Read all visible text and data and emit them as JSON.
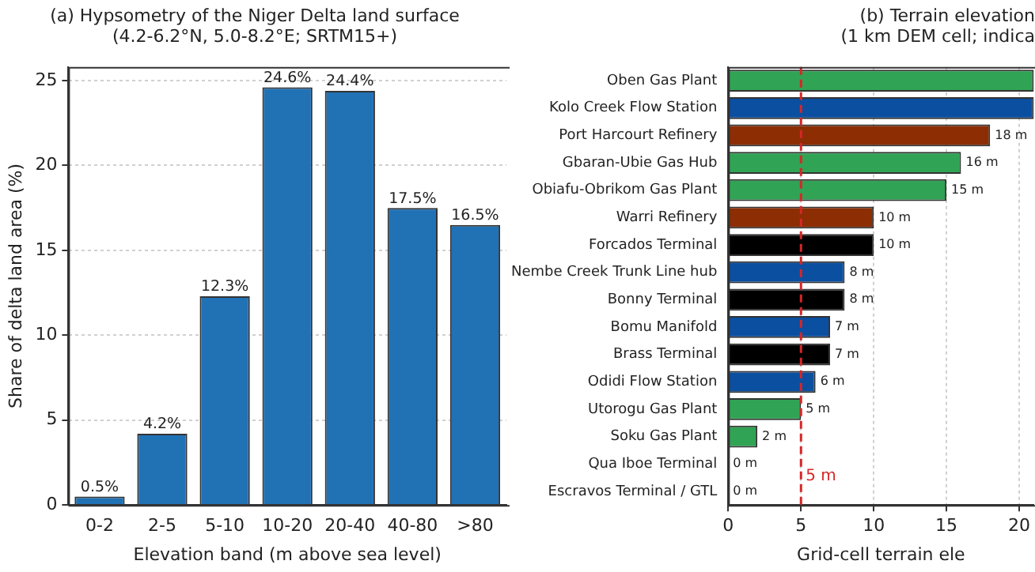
{
  "chart_data": [
    {
      "type": "bar",
      "title": "(a) Hypsometry of the Niger Delta land surface",
      "subtitle": "(4.2-6.2°N, 5.0-8.2°E; SRTM15+)",
      "xlabel": "Elevation band (m above sea level)",
      "ylabel": "Share of delta land area (%)",
      "categories": [
        "0-2",
        "2-5",
        "5-10",
        "10-20",
        "20-40",
        "40-80",
        ">80"
      ],
      "values": [
        0.5,
        4.2,
        12.3,
        24.6,
        24.4,
        17.5,
        16.5
      ],
      "value_labels": [
        "0.5%",
        "4.2%",
        "12.3%",
        "24.6%",
        "24.4%",
        "17.5%",
        "16.5%"
      ],
      "color": "#2171b5",
      "ylim": [
        0,
        25.8
      ],
      "yticks": [
        0,
        5,
        10,
        15,
        20,
        25
      ],
      "grid": "y"
    },
    {
      "type": "bar",
      "orientation": "horizontal",
      "title": "(b) Terrain elevation",
      "subtitle": "(1 km DEM cell; indica",
      "xlabel": "Grid-cell terrain ele",
      "categories": [
        "Oben Gas Plant",
        "Kolo Creek Flow Station",
        "Port Harcourt Refinery",
        "Gbaran-Ubie Gas Hub",
        "Obiafu-Obrikom Gas Plant",
        "Warri Refinery",
        "Forcados Terminal",
        "Nembe Creek Trunk Line hub",
        "Bonny Terminal",
        "Bomu Manifold",
        "Brass Terminal",
        "Odidi Flow Station",
        "Utorogu Gas Plant",
        "Soku Gas Plant",
        "Qua Iboe Terminal",
        "Escravos Terminal / GTL"
      ],
      "values": [
        21,
        21,
        18,
        16,
        15,
        10,
        10,
        8,
        8,
        7,
        7,
        6,
        5,
        2,
        0,
        0
      ],
      "value_labels": [
        null,
        null,
        "18 m",
        "16 m",
        "15 m",
        "10 m",
        "10 m",
        "8 m",
        "8 m",
        "7 m",
        "7 m",
        "6 m",
        "5 m",
        "2 m",
        "0 m",
        "0 m"
      ],
      "colors": [
        "#31a354",
        "#0b4fa0",
        "#8c2d04",
        "#31a354",
        "#31a354",
        "#8c2d04",
        "#000000",
        "#0b4fa0",
        "#000000",
        "#0b4fa0",
        "#000000",
        "#0b4fa0",
        "#31a354",
        "#31a354",
        "#31a354",
        "#000000"
      ],
      "xlim": [
        0,
        21
      ],
      "xticks": [
        0,
        5,
        10,
        15,
        20
      ],
      "grid": "x",
      "ref_lines": [
        {
          "axis": "x",
          "value": 5,
          "label": "5 m",
          "color": "#d62728",
          "line_style": "dashed"
        }
      ]
    }
  ]
}
